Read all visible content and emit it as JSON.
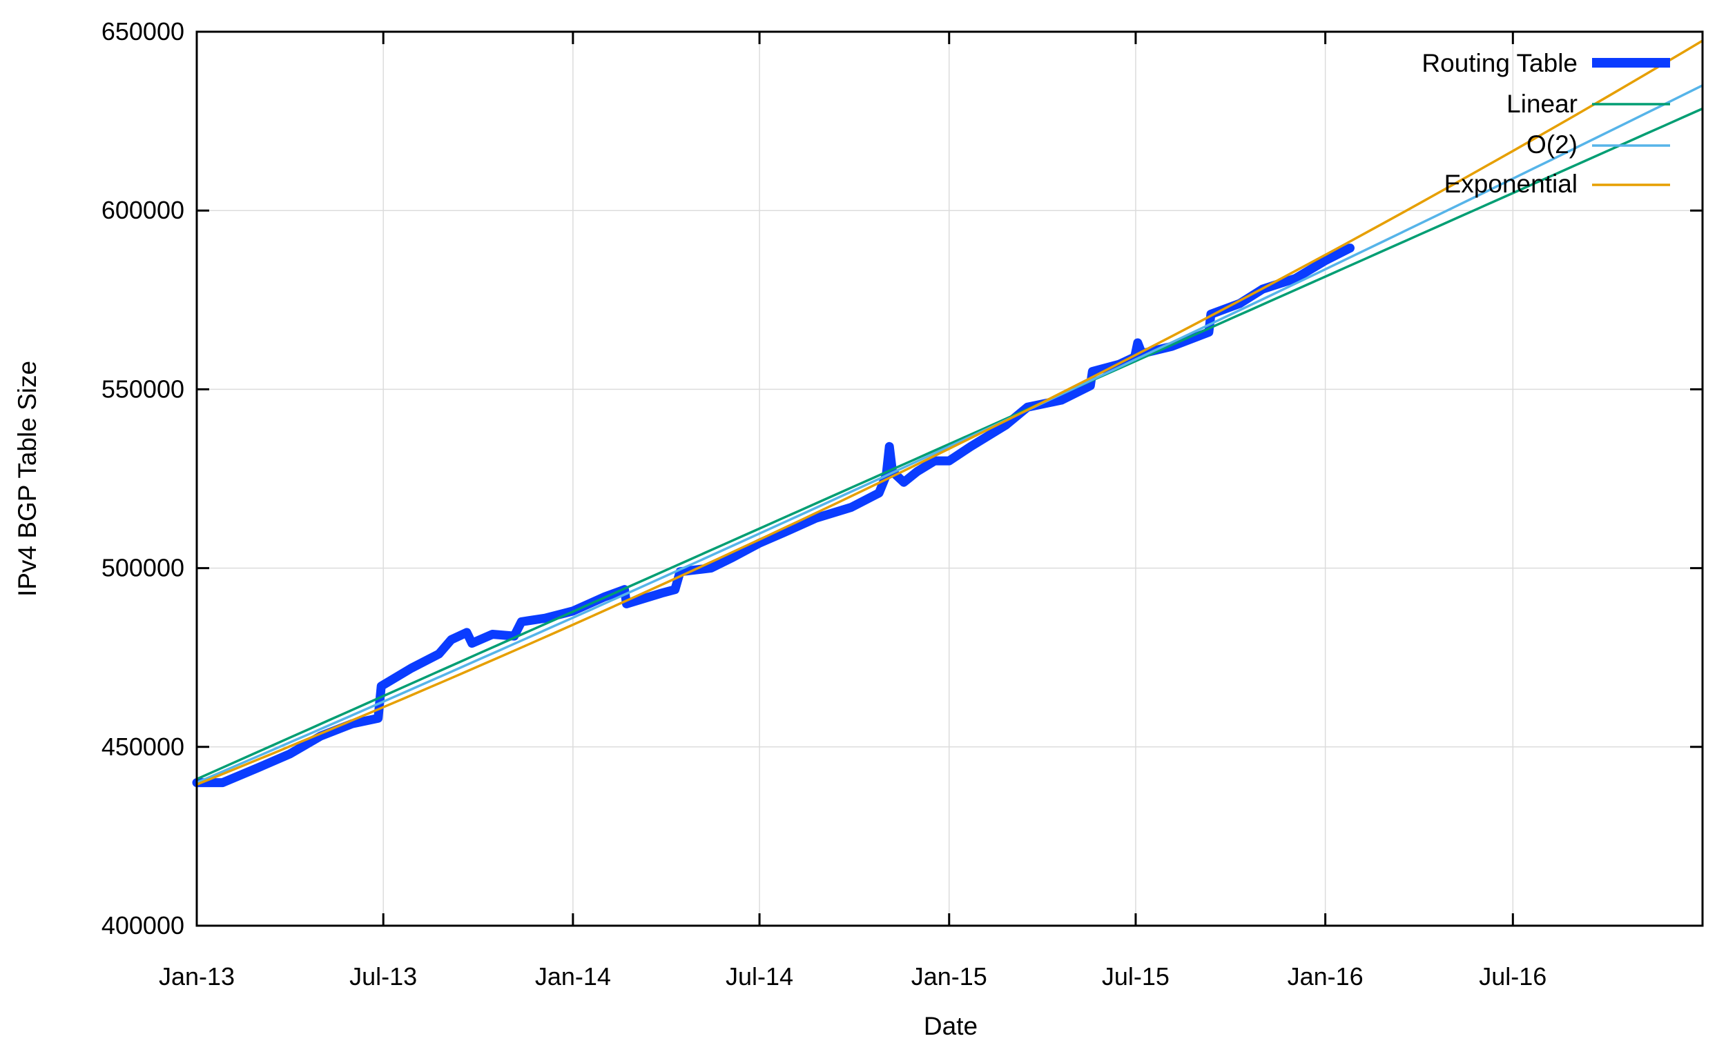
{
  "chart_data": {
    "type": "line",
    "title": "",
    "xlabel": "Date",
    "ylabel": "IPv4 BGP Table Size",
    "xlim": [
      "2013-01-01",
      "2017-01-01"
    ],
    "ylim": [
      400000,
      650000
    ],
    "grid": true,
    "legend_position": "top-right",
    "x_ticks": [
      {
        "date": "2013-01-01",
        "label": "Jan-13"
      },
      {
        "date": "2013-07-01",
        "label": "Jul-13"
      },
      {
        "date": "2014-01-01",
        "label": "Jan-14"
      },
      {
        "date": "2014-07-01",
        "label": "Jul-14"
      },
      {
        "date": "2015-01-01",
        "label": "Jan-15"
      },
      {
        "date": "2015-07-01",
        "label": "Jul-15"
      },
      {
        "date": "2016-01-01",
        "label": "Jan-16"
      },
      {
        "date": "2016-07-01",
        "label": "Jul-16"
      }
    ],
    "y_ticks": [
      {
        "value": 400000,
        "label": "400000"
      },
      {
        "value": 450000,
        "label": "450000"
      },
      {
        "value": 500000,
        "label": "500000"
      },
      {
        "value": 550000,
        "label": "550000"
      },
      {
        "value": 600000,
        "label": "600000"
      },
      {
        "value": 650000,
        "label": "650000"
      }
    ],
    "series": [
      {
        "name": "Routing Table",
        "color": "#0a3cff",
        "points": [
          [
            "2013-01-01",
            440000
          ],
          [
            "2013-01-26",
            440000
          ],
          [
            "2013-02-28",
            444000
          ],
          [
            "2013-04-01",
            448000
          ],
          [
            "2013-05-01",
            453000
          ],
          [
            "2013-06-01",
            456500
          ],
          [
            "2013-06-26",
            458000
          ],
          [
            "2013-06-29",
            467000
          ],
          [
            "2013-07-28",
            472000
          ],
          [
            "2013-08-24",
            476000
          ],
          [
            "2013-09-05",
            480000
          ],
          [
            "2013-09-20",
            482000
          ],
          [
            "2013-09-25",
            479000
          ],
          [
            "2013-10-15",
            481500
          ],
          [
            "2013-11-05",
            481000
          ],
          [
            "2013-11-12",
            485000
          ],
          [
            "2013-12-05",
            486000
          ],
          [
            "2014-01-01",
            488000
          ],
          [
            "2014-02-01",
            492000
          ],
          [
            "2014-02-20",
            494000
          ],
          [
            "2014-02-22",
            490000
          ],
          [
            "2014-03-28",
            493000
          ],
          [
            "2014-04-10",
            494000
          ],
          [
            "2014-04-15",
            499000
          ],
          [
            "2014-05-15",
            500000
          ],
          [
            "2014-06-05",
            503000
          ],
          [
            "2014-07-01",
            507000
          ],
          [
            "2014-07-25",
            510000
          ],
          [
            "2014-08-25",
            514000
          ],
          [
            "2014-09-28",
            517000
          ],
          [
            "2014-10-25",
            521000
          ],
          [
            "2014-11-01",
            526000
          ],
          [
            "2014-11-04",
            534000
          ],
          [
            "2014-11-07",
            527000
          ],
          [
            "2014-11-18",
            524000
          ],
          [
            "2014-12-01",
            527000
          ],
          [
            "2014-12-18",
            530000
          ],
          [
            "2015-01-01",
            530000
          ],
          [
            "2015-01-22",
            534000
          ],
          [
            "2015-02-25",
            540000
          ],
          [
            "2015-03-18",
            545000
          ],
          [
            "2015-04-20",
            547000
          ],
          [
            "2015-05-18",
            551000
          ],
          [
            "2015-05-20",
            555000
          ],
          [
            "2015-06-15",
            557000
          ],
          [
            "2015-06-30",
            559000
          ],
          [
            "2015-07-03",
            563000
          ],
          [
            "2015-07-07",
            560000
          ],
          [
            "2015-08-05",
            562000
          ],
          [
            "2015-09-10",
            566000
          ],
          [
            "2015-09-12",
            571000
          ],
          [
            "2015-10-10",
            574000
          ],
          [
            "2015-11-01",
            578000
          ],
          [
            "2015-12-03",
            581000
          ],
          [
            "2016-01-01",
            586000
          ],
          [
            "2016-01-25",
            589500
          ]
        ]
      },
      {
        "name": "Linear",
        "color": "#009e73",
        "fit": "linear",
        "start": [
          "2013-01-01",
          441000
        ],
        "end": [
          "2017-01-01",
          628500
        ]
      },
      {
        "name": "O(2)",
        "color": "#56b4e9",
        "fit": "quadratic",
        "start": [
          "2013-01-01",
          440000
        ],
        "mid": [
          "2015-01-01",
          534000
        ],
        "end": [
          "2017-01-01",
          635000
        ]
      },
      {
        "name": "Exponential",
        "color": "#e69f00",
        "fit": "exponential",
        "start": [
          "2013-01-01",
          439500
        ],
        "end": [
          "2017-01-01",
          647500
        ]
      }
    ]
  }
}
